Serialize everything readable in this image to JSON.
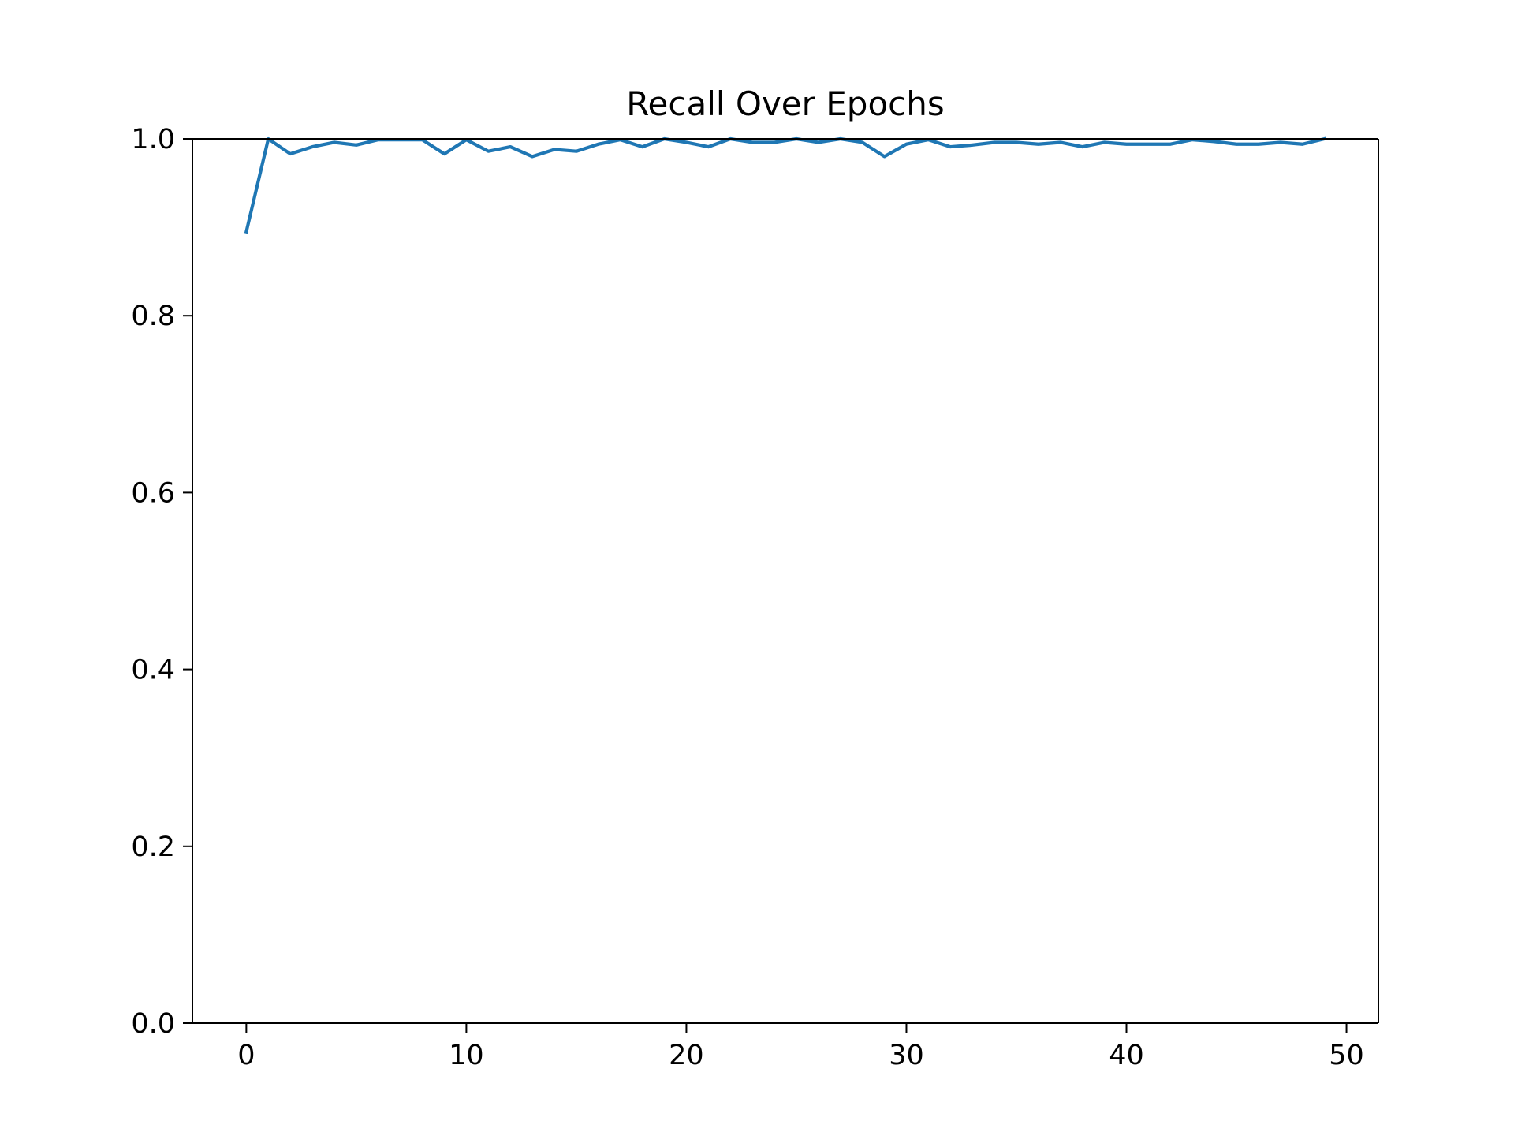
{
  "chart_data": {
    "type": "line",
    "title": "Recall Over Epochs",
    "xlabel": "",
    "ylabel": "",
    "xlim": [
      -2.45,
      51.45
    ],
    "ylim": [
      0.0,
      1.0
    ],
    "x_ticks": [
      0,
      10,
      20,
      30,
      40,
      50
    ],
    "y_ticks": [
      0.0,
      0.2,
      0.4,
      0.6,
      0.8,
      1.0
    ],
    "x_tick_labels": [
      "0",
      "10",
      "20",
      "30",
      "40",
      "50"
    ],
    "y_tick_labels": [
      "0.0",
      "0.2",
      "0.4",
      "0.6",
      "0.8",
      "1.0"
    ],
    "grid": false,
    "series": [
      {
        "color": "#1f77b4",
        "x": [
          0,
          1,
          2,
          3,
          4,
          5,
          6,
          7,
          8,
          9,
          10,
          11,
          12,
          13,
          14,
          15,
          16,
          17,
          18,
          19,
          20,
          21,
          22,
          23,
          24,
          25,
          26,
          27,
          28,
          29,
          30,
          31,
          32,
          33,
          34,
          35,
          36,
          37,
          38,
          39,
          40,
          41,
          42,
          43,
          44,
          45,
          46,
          47,
          48,
          49
        ],
        "values": [
          0.895,
          1.0,
          0.983,
          0.991,
          0.996,
          0.993,
          0.999,
          0.999,
          0.999,
          0.983,
          0.999,
          0.986,
          0.991,
          0.98,
          0.988,
          0.986,
          0.994,
          0.999,
          0.991,
          1.0,
          0.996,
          0.991,
          1.0,
          0.996,
          0.996,
          1.0,
          0.996,
          1.0,
          0.996,
          0.98,
          0.994,
          0.999,
          0.991,
          0.993,
          0.996,
          0.996,
          0.994,
          0.996,
          0.991,
          0.996,
          0.994,
          0.994,
          0.994,
          0.999,
          0.997,
          0.994,
          0.994,
          0.996,
          0.994,
          1.0
        ]
      }
    ]
  }
}
